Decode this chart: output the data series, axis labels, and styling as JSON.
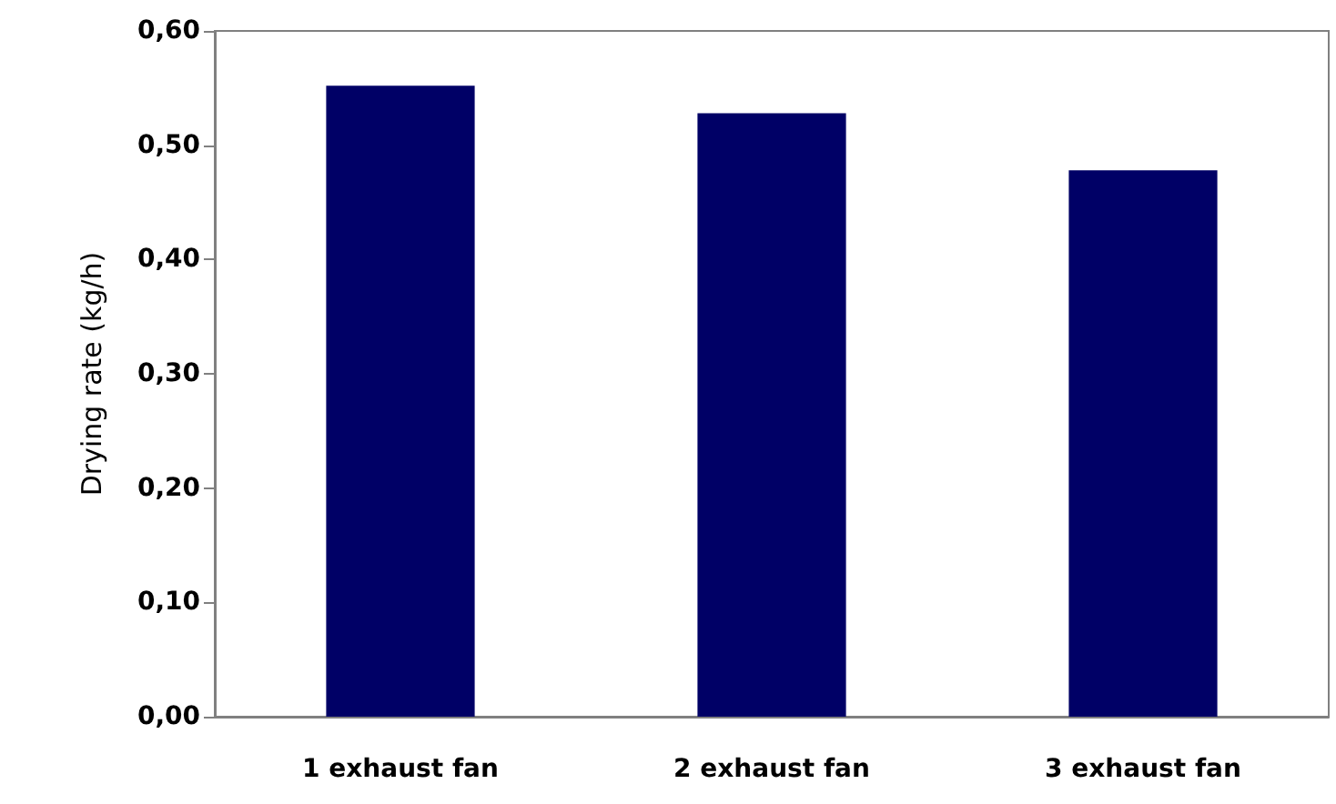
{
  "chart_data": {
    "type": "bar",
    "ylabel": "Drying rate (kg/h)",
    "categories": [
      "1 exhaust fan",
      "2 exhaust fan",
      "3 exhaust fan"
    ],
    "values": [
      0.552,
      0.528,
      0.478
    ],
    "color": "#000066",
    "ylim": [
      0,
      0.6
    ],
    "yticks": [
      {
        "value": 0,
        "label": "0,00"
      },
      {
        "value": 0.1,
        "label": "0,10"
      },
      {
        "value": 0.2,
        "label": "0,20"
      },
      {
        "value": 0.3,
        "label": "0,30"
      },
      {
        "value": 0.4,
        "label": "0,40"
      },
      {
        "value": 0.5,
        "label": "0,50"
      },
      {
        "value": 0.6,
        "label": "0,60"
      }
    ],
    "grid": false
  }
}
